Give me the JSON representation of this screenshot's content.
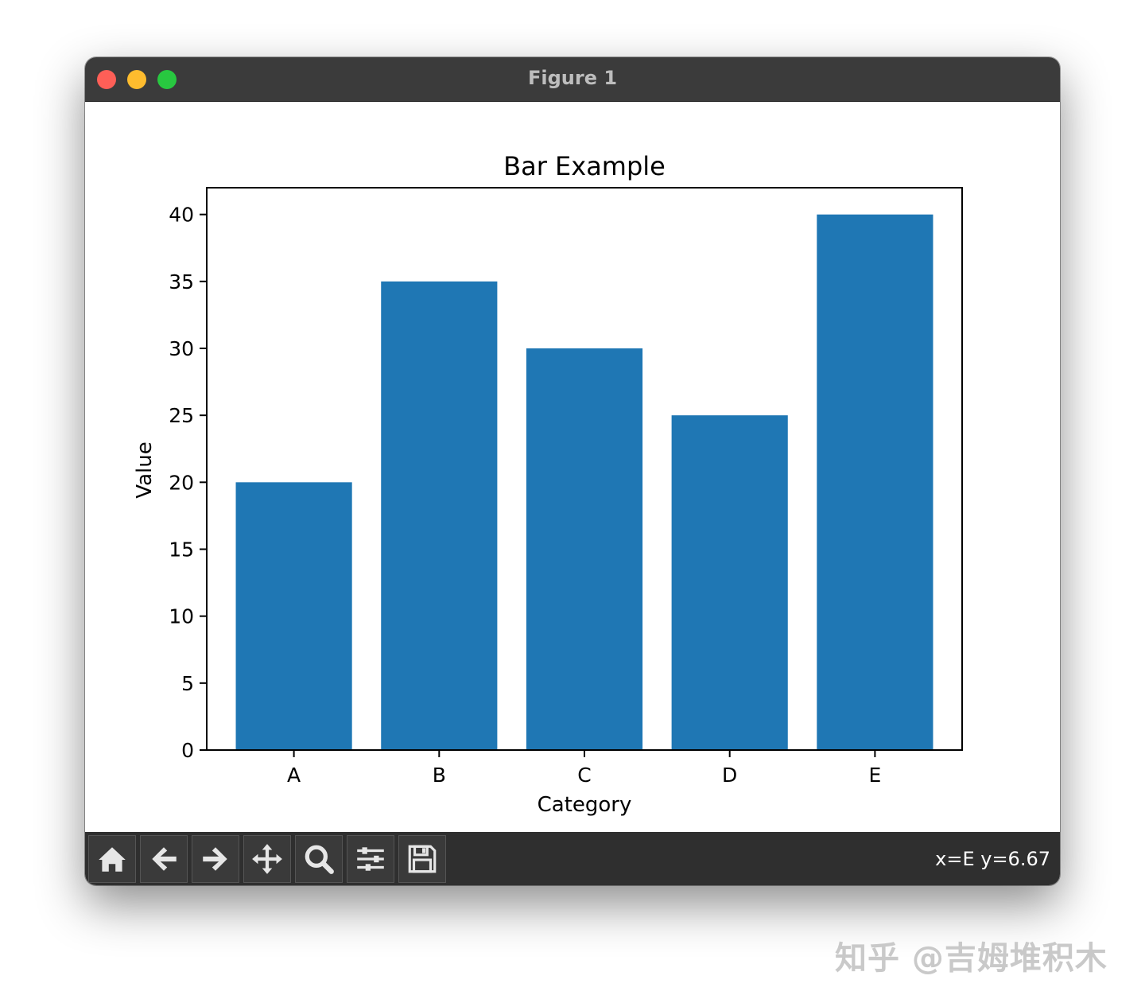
{
  "window": {
    "title": "Figure 1"
  },
  "chart_data": {
    "type": "bar",
    "title": "Bar Example",
    "xlabel": "Category",
    "ylabel": "Value",
    "categories": [
      "A",
      "B",
      "C",
      "D",
      "E"
    ],
    "values": [
      20,
      35,
      30,
      25,
      40
    ],
    "ylim": [
      0,
      42
    ],
    "yticks": [
      0,
      5,
      10,
      15,
      20,
      25,
      30,
      35,
      40
    ],
    "bar_color": "#1f77b4",
    "grid": false
  },
  "toolbar": {
    "buttons": [
      {
        "name": "home-button",
        "icon": "home-icon"
      },
      {
        "name": "back-button",
        "icon": "arrow-left-icon"
      },
      {
        "name": "forward-button",
        "icon": "arrow-right-icon"
      },
      {
        "name": "pan-button",
        "icon": "move-icon"
      },
      {
        "name": "zoom-button",
        "icon": "magnifier-icon"
      },
      {
        "name": "configure-subplots-button",
        "icon": "sliders-icon"
      },
      {
        "name": "save-button",
        "icon": "floppy-icon"
      }
    ],
    "coords": "x=E y=6.67"
  },
  "watermark": "知乎 @吉姆堆积木"
}
